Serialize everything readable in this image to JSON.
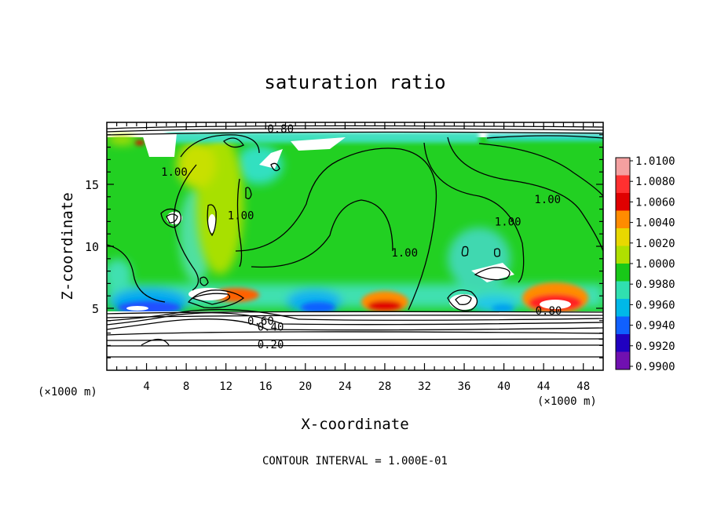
{
  "chart_data": {
    "type": "heatmap",
    "title": "saturation ratio",
    "xlabel": "X-coordinate",
    "ylabel": "Z-coordinate",
    "x_unit_left": "(×1000 m)",
    "x_unit_right": "(×1000 m)",
    "xlim": [
      0,
      50
    ],
    "ylim": [
      0,
      20
    ],
    "x_ticks": [
      "4",
      "8",
      "12",
      "16",
      "20",
      "24",
      "28",
      "32",
      "36",
      "40",
      "44",
      "48"
    ],
    "y_ticks": [
      "5",
      "10",
      "15"
    ],
    "footer": "CONTOUR INTERVAL = 1.000E-01",
    "colorbar": {
      "labels": [
        "1.0100",
        "1.0080",
        "1.0060",
        "1.0040",
        "1.0020",
        "1.0000",
        "0.9980",
        "0.9960",
        "0.9940",
        "0.9920",
        "0.9900"
      ],
      "colors": [
        "#f4a0a0",
        "#ff3030",
        "#e00000",
        "#ff8c00",
        "#e8d800",
        "#b0e000",
        "#18c818",
        "#30e0b0",
        "#00b8e8",
        "#1060ff",
        "#2000c0",
        "#7010b0"
      ]
    },
    "contour_labels": [
      {
        "text": "1.00",
        "x": 6.8,
        "z": 16.0
      },
      {
        "text": "1.00",
        "x": 13.5,
        "z": 12.5
      },
      {
        "text": "1.00",
        "x": 30.0,
        "z": 9.5
      },
      {
        "text": "1.00",
        "x": 40.4,
        "z": 12.0
      },
      {
        "text": "1.00",
        "x": 44.4,
        "z": 13.8
      },
      {
        "text": "0.80",
        "x": 17.5,
        "z": 19.5
      },
      {
        "text": "0.80",
        "x": 44.5,
        "z": 4.8
      },
      {
        "text": "0.60",
        "x": 15.5,
        "z": 4.0
      },
      {
        "text": "0.40",
        "x": 16.5,
        "z": 3.5
      },
      {
        "text": "0.20",
        "x": 16.5,
        "z": 2.1
      }
    ]
  }
}
